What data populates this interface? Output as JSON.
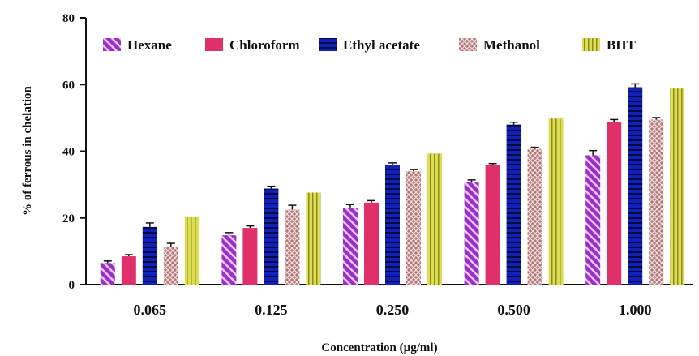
{
  "chart_data": {
    "type": "bar",
    "title": "",
    "xlabel": "Concentration (µg/ml)",
    "ylabel": "% of ferrous in chelation",
    "ylim": [
      0,
      80
    ],
    "yticks": [
      0,
      20,
      40,
      60,
      80
    ],
    "categories": [
      "0.065",
      "0.125",
      "0.250",
      "0.500",
      "1.000"
    ],
    "legend_position": "top",
    "grid": false,
    "series": [
      {
        "name": "Hexane",
        "values": [
          6.5,
          14.8,
          23.0,
          30.8,
          38.8
        ],
        "errors": [
          0.6,
          0.8,
          1.0,
          0.6,
          1.4
        ],
        "color": "#9b30c8",
        "pattern": "diag"
      },
      {
        "name": "Chloroform",
        "values": [
          8.5,
          17.0,
          24.6,
          35.8,
          48.8
        ],
        "errors": [
          0.5,
          0.6,
          0.6,
          0.5,
          0.7
        ],
        "color": "#e0306a",
        "pattern": "solid"
      },
      {
        "name": "Ethyl acetate",
        "values": [
          17.3,
          28.8,
          35.8,
          48.0,
          59.2
        ],
        "errors": [
          1.2,
          0.7,
          0.7,
          0.7,
          1.0
        ],
        "color": "#1020b8",
        "pattern": "hstripe"
      },
      {
        "name": "Methanol",
        "values": [
          11.2,
          22.5,
          34.0,
          40.7,
          49.5
        ],
        "errors": [
          1.2,
          1.3,
          0.5,
          0.5,
          0.6
        ],
        "color": "#a86a6a",
        "pattern": "cross"
      },
      {
        "name": "BHT",
        "values": [
          20.3,
          27.6,
          39.3,
          49.8,
          58.8
        ],
        "errors": [
          0,
          0,
          0,
          0,
          0
        ],
        "color": "#d8d848",
        "pattern": "vstripe"
      }
    ]
  }
}
